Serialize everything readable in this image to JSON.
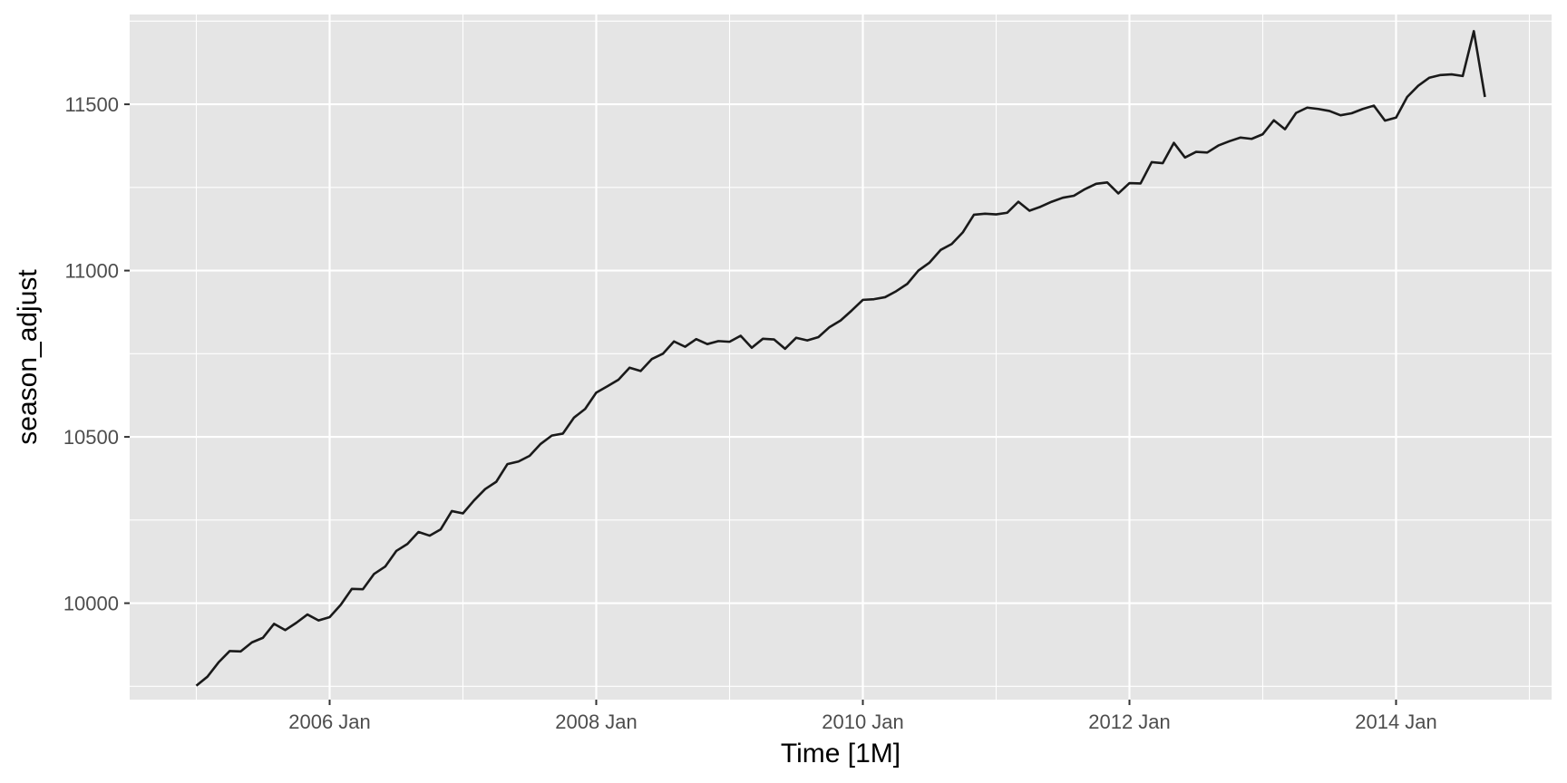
{
  "chart_data": {
    "type": "line",
    "title": "",
    "xlabel": "Time [1M]",
    "ylabel": "season_adjust",
    "x_start": "2005 Jan",
    "x_end": "2014 Sep",
    "x_frequency": "monthly",
    "xlim": [
      "2004 Jul",
      "2015 Mar"
    ],
    "ylim": [
      9710,
      11770
    ],
    "x_ticks": [
      "2006 Jan",
      "2008 Jan",
      "2010 Jan",
      "2012 Jan",
      "2014 Jan"
    ],
    "y_ticks": [
      10000,
      10500,
      11000,
      11500
    ],
    "grid": true,
    "legend": "none",
    "series": [
      {
        "values": [
          9752,
          9779,
          9822,
          9856,
          9855,
          9882,
          9896,
          9938,
          9919,
          9941,
          9966,
          9948,
          9958,
          9995,
          10043,
          10042,
          10088,
          10110,
          10157,
          10178,
          10214,
          10203,
          10222,
          10277,
          10270,
          10309,
          10343,
          10365,
          10418,
          10426,
          10443,
          10479,
          10504,
          10510,
          10558,
          10584,
          10633,
          10652,
          10672,
          10708,
          10698,
          10734,
          10750,
          10787,
          10771,
          10794,
          10779,
          10788,
          10786,
          10804,
          10768,
          10795,
          10793,
          10765,
          10798,
          10790,
          10800,
          10830,
          10850,
          10880,
          10912,
          10914,
          10920,
          10938,
          10960,
          11000,
          11024,
          11062,
          11080,
          11115,
          11168,
          11171,
          11169,
          11174,
          11207,
          11180,
          11192,
          11207,
          11219,
          11225,
          11245,
          11261,
          11265,
          11232,
          11263,
          11262,
          11326,
          11323,
          11384,
          11340,
          11357,
          11355,
          11376,
          11389,
          11400,
          11396,
          11410,
          11452,
          11425,
          11474,
          11490,
          11486,
          11480,
          11467,
          11473,
          11486,
          11496,
          11451,
          11460,
          11522,
          11556,
          11580,
          11588,
          11590,
          11585,
          11720,
          11522
        ]
      }
    ],
    "colors": {
      "line": "#1a1a1a",
      "panel": "#e5e5e5",
      "grid": "#ffffff",
      "tick_text": "#4d4d4d",
      "title_text": "#000000"
    }
  }
}
